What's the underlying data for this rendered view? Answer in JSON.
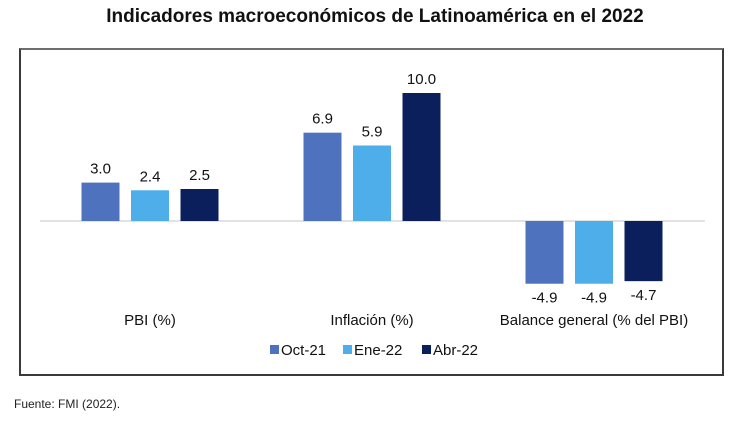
{
  "chart_data": {
    "type": "bar",
    "title": "Indicadores macroeconómicos de Latinoamérica en el 2022",
    "categories": [
      "PBI (%)",
      "Inflación (%)",
      "Balance general (% del PBI)"
    ],
    "series": [
      {
        "name": "Oct-21",
        "color": "#4F72BE",
        "values": [
          3.0,
          6.9,
          -4.9
        ]
      },
      {
        "name": "Ene-22",
        "color": "#4EAEEA",
        "values": [
          2.4,
          5.9,
          -4.9
        ]
      },
      {
        "name": "Abr-22",
        "color": "#0B1F5C",
        "values": [
          2.5,
          10.0,
          -4.7
        ]
      }
    ],
    "data_labels": [
      [
        "3.0",
        "6.9",
        "-4.9"
      ],
      [
        "2.4",
        "5.9",
        "-4.9"
      ],
      [
        "2.5",
        "10.0",
        "-4.7"
      ]
    ],
    "xlabel": "",
    "ylabel": "",
    "ylim": [
      -6,
      11
    ],
    "grid": false,
    "legend_position": "bottom"
  },
  "source_note": "Fuente: FMI (2022)."
}
